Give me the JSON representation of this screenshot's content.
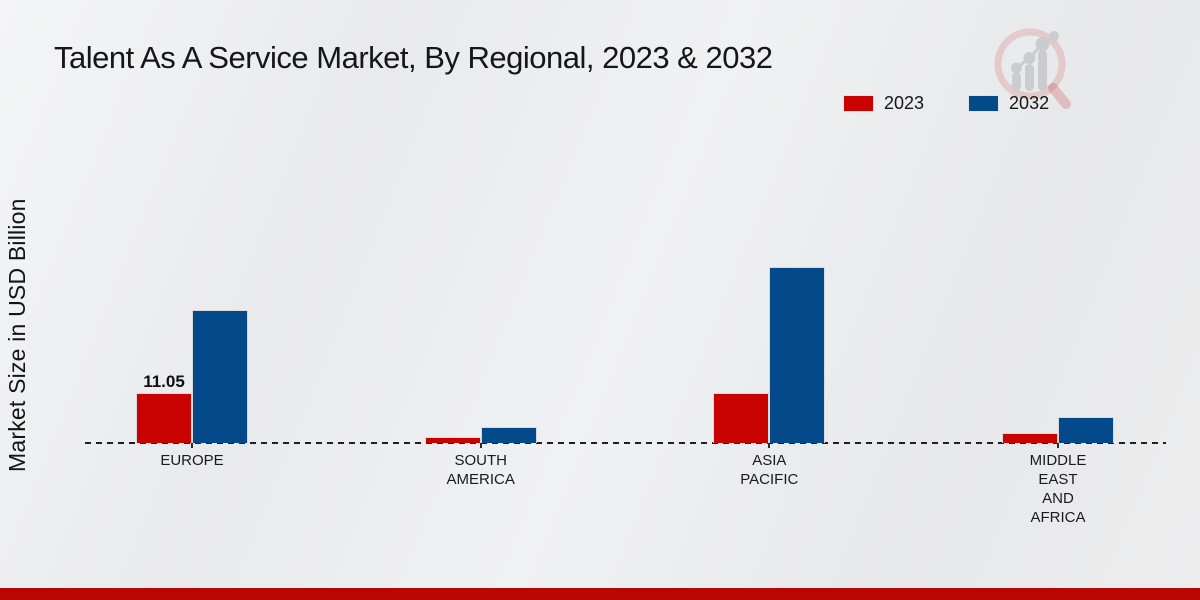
{
  "page": {
    "title": "Talent As A Service Market, By Regional, 2023 & 2032",
    "footer_bar_color": "#b90504",
    "background_color": "#ebecee",
    "logo": "magnifier-bar-chart-watermark"
  },
  "legend": {
    "items": [
      {
        "label": "2023",
        "color": "#c90301"
      },
      {
        "label": "2032",
        "color": "#04498a"
      }
    ]
  },
  "chart_data": {
    "type": "bar",
    "title": "Talent As A Service Market, By Regional, 2023 & 2032",
    "xlabel": "",
    "ylabel": "Market Size in USD Billion",
    "categories": [
      "EUROPE",
      "SOUTH AMERICA",
      "ASIA PACIFIC",
      "MIDDLE EAST AND AFRICA"
    ],
    "category_label_lines": [
      [
        "EUROPE"
      ],
      [
        "SOUTH",
        "AMERICA"
      ],
      [
        "ASIA",
        "PACIFIC"
      ],
      [
        "MIDDLE",
        "EAST",
        "AND",
        "AFRICA"
      ]
    ],
    "series": [
      {
        "name": "2023",
        "color": "#c90301",
        "values": [
          11.05,
          1.3,
          11.0,
          2.2
        ],
        "labels": [
          "11.05",
          "",
          "",
          ""
        ]
      },
      {
        "name": "2032",
        "color": "#04498a",
        "values": [
          29.4,
          3.5,
          39.0,
          5.7
        ],
        "labels": [
          "",
          "",
          "",
          ""
        ]
      }
    ],
    "ylim": [
      0,
      40
    ],
    "grid": false,
    "axis_style": "dashed-baseline-only",
    "legend_position": "top-right"
  }
}
